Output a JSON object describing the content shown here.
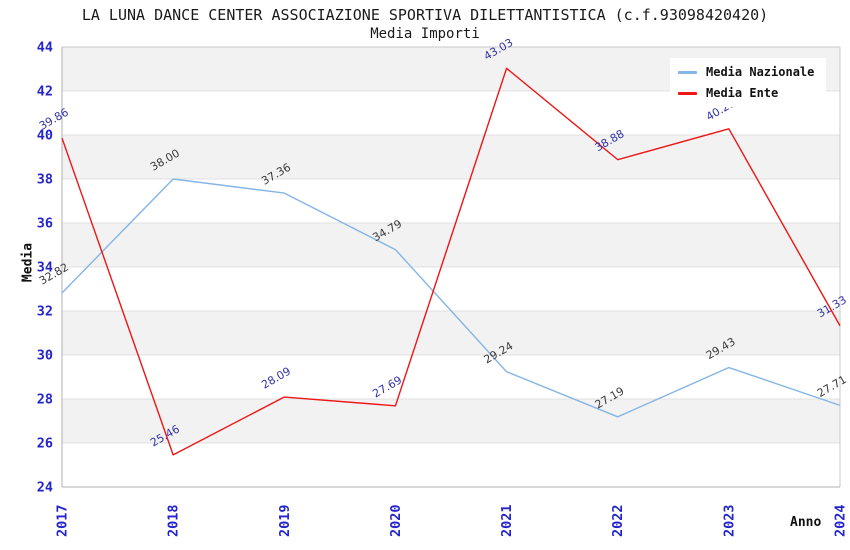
{
  "header": {
    "title": "LA LUNA DANCE CENTER ASSOCIAZIONE SPORTIVA DILETTANTISTICA (c.f.93098420420)",
    "subtitle": "Media Importi"
  },
  "chart_data": {
    "type": "line",
    "x": [
      "2017",
      "2018",
      "2019",
      "2020",
      "2021",
      "2022",
      "2023",
      "2024"
    ],
    "xlabel": "Anno",
    "ylabel": "Media",
    "ylim": [
      24,
      44
    ],
    "ytick_step": 2,
    "grid": "horizontal-bands",
    "legend_position": "top-right",
    "series": [
      {
        "name": "Media Nazionale",
        "color": "#85b5e6",
        "label_color": "#3a3a3a",
        "values": [
          32.82,
          38.0,
          37.36,
          34.79,
          29.24,
          27.19,
          29.43,
          27.71
        ]
      },
      {
        "name": "Media Ente",
        "color": "#ee1515",
        "label_color": "#3333a6",
        "values": [
          39.86,
          25.46,
          28.09,
          27.69,
          43.03,
          38.88,
          40.28,
          31.33
        ]
      }
    ],
    "colors": {
      "tick_label": "#2424cc",
      "band": "#f2f2f2",
      "gridline": "#e0e0e0",
      "spine": "#c8c8c8",
      "title_text": "#1a1a1a"
    }
  }
}
